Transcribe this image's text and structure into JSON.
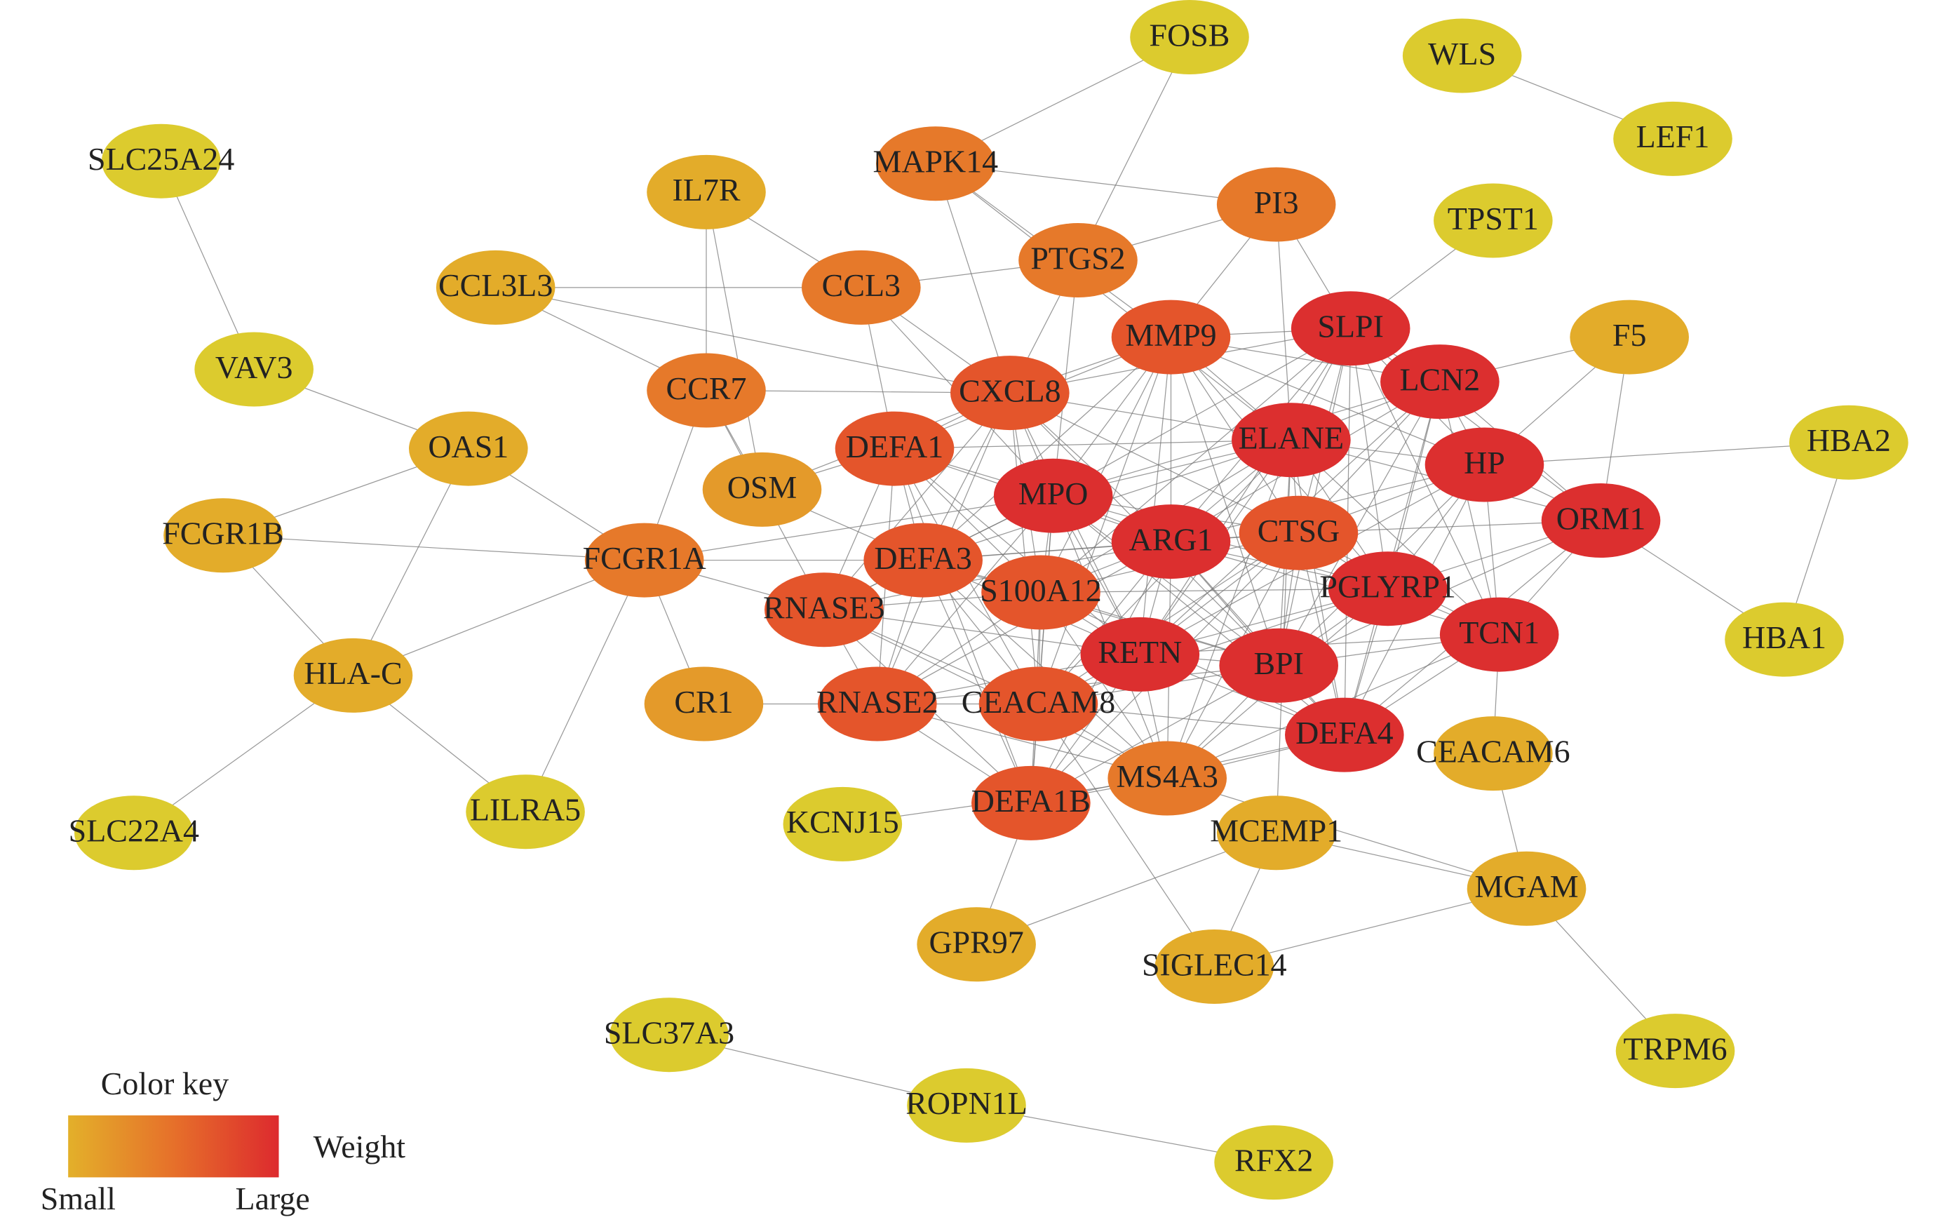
{
  "nodes": [
    {
      "label": "FOSB"
    },
    {
      "label": "WLS"
    },
    {
      "label": "LEF1"
    },
    {
      "label": "SLC25A24"
    },
    {
      "label": "IL7R"
    },
    {
      "label": "MAPK14"
    },
    {
      "label": "PI3"
    },
    {
      "label": "TPST1"
    },
    {
      "label": "CCL3L3"
    },
    {
      "label": "CCL3"
    },
    {
      "label": "PTGS2"
    },
    {
      "label": "VAV3"
    },
    {
      "label": "MMP9"
    },
    {
      "label": "SLPI"
    },
    {
      "label": "F5"
    },
    {
      "label": "CCR7"
    },
    {
      "label": "CXCL8"
    },
    {
      "label": "LCN2"
    },
    {
      "label": "OAS1"
    },
    {
      "label": "DEFA1"
    },
    {
      "label": "ELANE"
    },
    {
      "label": "HBA2"
    },
    {
      "label": "OSM"
    },
    {
      "label": "MPO"
    },
    {
      "label": "HP"
    },
    {
      "label": "FCGR1B"
    },
    {
      "label": "ARG1"
    },
    {
      "label": "CTSG"
    },
    {
      "label": "ORM1"
    },
    {
      "label": "FCGR1A"
    },
    {
      "label": "DEFA3"
    },
    {
      "label": "S100A12"
    },
    {
      "label": "PGLYRP1"
    },
    {
      "label": "RNASE3"
    },
    {
      "label": "HBA1"
    },
    {
      "label": "TCN1"
    },
    {
      "label": "HLA-C"
    },
    {
      "label": "RETN"
    },
    {
      "label": "BPI"
    },
    {
      "label": "CR1"
    },
    {
      "label": "RNASE2"
    },
    {
      "label": "CEACAM8"
    },
    {
      "label": "DEFA4"
    },
    {
      "label": "CEACAM6"
    },
    {
      "label": "MS4A3"
    },
    {
      "label": "SLC22A4"
    },
    {
      "label": "LILRA5"
    },
    {
      "label": "KCNJ15"
    },
    {
      "label": "DEFA1B"
    },
    {
      "label": "MCEMP1"
    },
    {
      "label": "MGAM"
    },
    {
      "label": "GPR97"
    },
    {
      "label": "SIGLEC14"
    },
    {
      "label": "SLC37A3"
    },
    {
      "label": "TRPM6"
    },
    {
      "label": "ROPN1L"
    },
    {
      "label": "RFX2"
    }
  ],
  "legend": {
    "title": "Color key",
    "measure": "Weight",
    "low": "Small",
    "high": "Large"
  }
}
